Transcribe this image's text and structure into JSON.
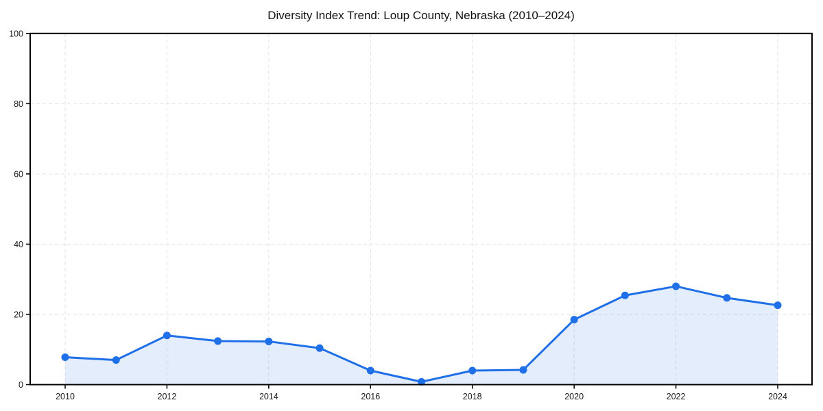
{
  "title": "Diversity Index Trend: Loup County, Nebraska (2010–2024)",
  "chart_data": {
    "type": "area",
    "title": "Diversity Index Trend: Loup County, Nebraska (2010–2024)",
    "xlabel": "",
    "ylabel": "",
    "x": [
      2010,
      2011,
      2012,
      2013,
      2014,
      2015,
      2016,
      2017,
      2018,
      2019,
      2020,
      2021,
      2022,
      2023,
      2024
    ],
    "series": [
      {
        "name": "Diversity Index",
        "values": [
          7.8,
          7.0,
          14.0,
          12.4,
          12.3,
          10.4,
          4.0,
          0.8,
          4.0,
          4.2,
          18.5,
          25.4,
          28.0,
          24.7,
          22.6
        ]
      }
    ],
    "ylim": [
      0,
      100
    ],
    "yticks": [
      0,
      20,
      40,
      60,
      80,
      100
    ],
    "xticks": [
      2010,
      2012,
      2014,
      2016,
      2018,
      2020,
      2022,
      2024
    ],
    "grid": "dashed",
    "legend": "none",
    "colors": {
      "line": "#1f6fe8",
      "marker": "#1f6fe8",
      "area_fill": "rgba(31,111,232,0.12)",
      "gridline": "#e2e2e2",
      "axis": "#000000",
      "text": "#1a1a1a"
    },
    "marker_style": "circle",
    "line_width": 3
  }
}
